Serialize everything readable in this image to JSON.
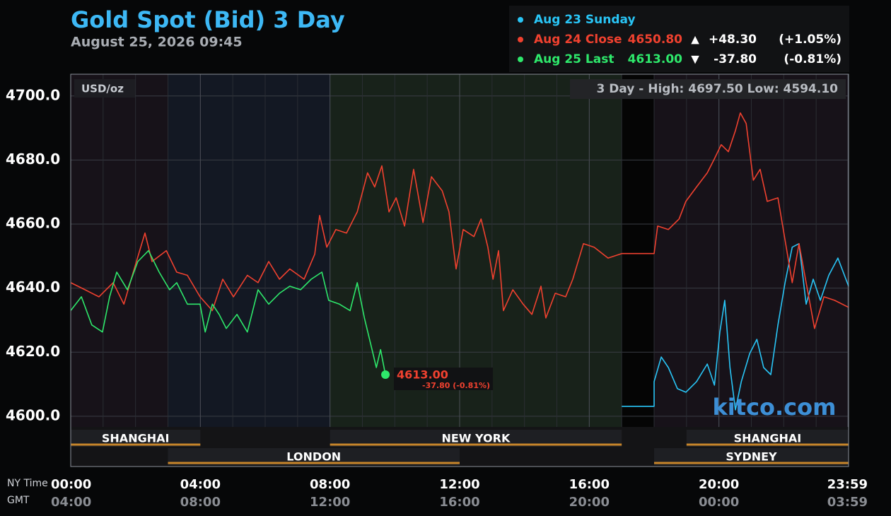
{
  "header": {
    "title": "Gold Spot (Bid) 3 Day",
    "timestamp": "August 25, 2026 09:45"
  },
  "chart_data": {
    "type": "line",
    "unit_label": "USD/oz",
    "range_note": "3 Day - High: 4697.50  Low: 4594.10",
    "watermark": "kitco.com",
    "x_axis_names": [
      "NY Time",
      "GMT"
    ],
    "xlim": [
      0,
      24
    ],
    "xticks": [
      {
        "value": 0,
        "label": "00:00"
      },
      {
        "value": 4,
        "label": "04:00"
      },
      {
        "value": 8,
        "label": "08:00"
      },
      {
        "value": 12,
        "label": "12:00"
      },
      {
        "value": 16,
        "label": "16:00"
      },
      {
        "value": 20,
        "label": "20:00"
      },
      {
        "value": 23.98,
        "label": "23:59"
      }
    ],
    "gmt_tick_labels": [
      "04:00",
      "08:00",
      "12:00",
      "16:00",
      "20:00",
      "00:00",
      "03:59"
    ],
    "ylim": [
      4584.3,
      4706.8
    ],
    "yticks": [
      {
        "value": 4600,
        "label": "4600.0"
      },
      {
        "value": 4620,
        "label": "4620.0"
      },
      {
        "value": 4640,
        "label": "4640.0"
      },
      {
        "value": 4660,
        "label": "4660.0"
      },
      {
        "value": 4680,
        "label": "4680.0"
      },
      {
        "value": 4700,
        "label": "4700.0"
      }
    ],
    "grid": true,
    "session_rows": [
      [
        {
          "name": "SHANGHAI",
          "start": 0,
          "end": 4
        },
        {
          "name": "NEW YORK",
          "start": 8,
          "end": 17
        },
        {
          "name": "SHANGHAI",
          "start": 19,
          "end": 24
        }
      ],
      [
        {
          "name": "LONDON",
          "start": 3,
          "end": 12
        },
        {
          "name": "SYDNEY",
          "start": 18,
          "end": 24
        }
      ]
    ],
    "series": [
      {
        "name": "Aug 23 Sunday",
        "color": "#29c5f6",
        "x": [
          17.0,
          18.0,
          18.0,
          18.22,
          18.44,
          18.72,
          18.98,
          19.31,
          19.64,
          19.86,
          20.03,
          20.18,
          20.34,
          20.51,
          20.69,
          20.95,
          21.17,
          21.38,
          21.6,
          21.82,
          22.04,
          22.26,
          22.47,
          22.69,
          22.91,
          23.13,
          23.39,
          23.67,
          24.0
        ],
        "values": [
          4603.1,
          4603.1,
          4610.8,
          4618.5,
          4615.2,
          4608.6,
          4607.5,
          4610.8,
          4616.3,
          4609.7,
          4626.3,
          4636.2,
          4615.2,
          4602,
          4610.8,
          4619.6,
          4624,
          4615.2,
          4613,
          4628.5,
          4641.7,
          4652.8,
          4653.9,
          4635,
          4642.8,
          4636.2,
          4644,
          4649.4,
          4640.6
        ]
      },
      {
        "name": "Aug 24 Close",
        "color": "#f0412f",
        "price": "4650.80",
        "arrow": "▲",
        "change": "+48.30",
        "change_pct": "(+1.05%)",
        "x": [
          0,
          0.44,
          0.87,
          1.31,
          1.64,
          1.96,
          2.29,
          2.51,
          2.95,
          3.27,
          3.6,
          3.99,
          4.37,
          4.69,
          5.02,
          5.45,
          5.78,
          6.11,
          6.44,
          6.76,
          7.2,
          7.53,
          7.68,
          7.9,
          8.18,
          8.51,
          8.84,
          9.16,
          9.38,
          9.6,
          9.82,
          10.04,
          10.3,
          10.58,
          10.87,
          11.13,
          11.46,
          11.67,
          11.89,
          12.11,
          12.44,
          12.66,
          12.87,
          13.03,
          13.2,
          13.35,
          13.64,
          13.96,
          14.23,
          14.51,
          14.66,
          14.95,
          15.27,
          15.49,
          15.82,
          16.15,
          16.58,
          17.0,
          18.0,
          18.11,
          18.44,
          18.77,
          18.98,
          19.31,
          19.64,
          19.86,
          20.07,
          20.29,
          20.51,
          20.66,
          20.84,
          21.06,
          21.27,
          21.49,
          21.82,
          22.04,
          22.26,
          22.47,
          22.69,
          22.95,
          23.24,
          23.57,
          24.0
        ],
        "values": [
          4641.7,
          4639.5,
          4637.3,
          4641.7,
          4635,
          4646,
          4657.2,
          4648.3,
          4651.7,
          4645,
          4644,
          4637.3,
          4633,
          4642.8,
          4637.3,
          4644,
          4641.7,
          4648.3,
          4642.8,
          4646,
          4642.8,
          4650.6,
          4662.7,
          4652.8,
          4658.3,
          4657.2,
          4663.8,
          4676,
          4671.6,
          4678.2,
          4663.8,
          4668.2,
          4659.4,
          4677.1,
          4660.5,
          4674.8,
          4670.4,
          4663.8,
          4646,
          4658.3,
          4656.1,
          4661.6,
          4652.8,
          4642.8,
          4651.7,
          4633,
          4639.5,
          4635,
          4631.8,
          4640.6,
          4630.7,
          4638.4,
          4637.3,
          4642.8,
          4653.9,
          4652.8,
          4649.4,
          4650.8,
          4650.8,
          4659.4,
          4658.3,
          4661.6,
          4667.1,
          4671.6,
          4676,
          4680.4,
          4684.8,
          4682.6,
          4689.2,
          4694.7,
          4691.4,
          4673.7,
          4677.1,
          4667.1,
          4668.2,
          4655,
          4641.7,
          4653.9,
          4641.7,
          4627.4,
          4637.3,
          4636.2,
          4634
        ]
      },
      {
        "name": "Aug 25 Last",
        "color": "#2ee86b",
        "price": "4613.00",
        "arrow": "▼",
        "change": "-37.80",
        "change_pct": "(-0.81%)",
        "x": [
          0,
          0.33,
          0.65,
          0.98,
          1.2,
          1.42,
          1.75,
          2.07,
          2.4,
          2.73,
          3.05,
          3.27,
          3.6,
          3.99,
          4.15,
          4.37,
          4.58,
          4.8,
          5.13,
          5.45,
          5.78,
          6.11,
          6.44,
          6.76,
          7.09,
          7.42,
          7.75,
          7.96,
          8.29,
          8.62,
          8.84,
          9.06,
          9.27,
          9.43,
          9.56,
          9.71
        ],
        "values": [
          4633,
          4637.3,
          4628.5,
          4626.3,
          4637.3,
          4645,
          4639.5,
          4648.3,
          4651.7,
          4645,
          4639.5,
          4641.7,
          4635,
          4635,
          4626.3,
          4635,
          4631.8,
          4627.4,
          4631.8,
          4626.3,
          4639.5,
          4635,
          4638.4,
          4640.6,
          4639.5,
          4642.8,
          4645,
          4636.2,
          4635,
          4633,
          4641.7,
          4630.7,
          4621.9,
          4615.2,
          4620.8,
          4613
        ]
      }
    ],
    "last_annotation": {
      "price": "4613.00",
      "change": "-37.80 (-0.81%)",
      "color": "#f0412f"
    }
  }
}
